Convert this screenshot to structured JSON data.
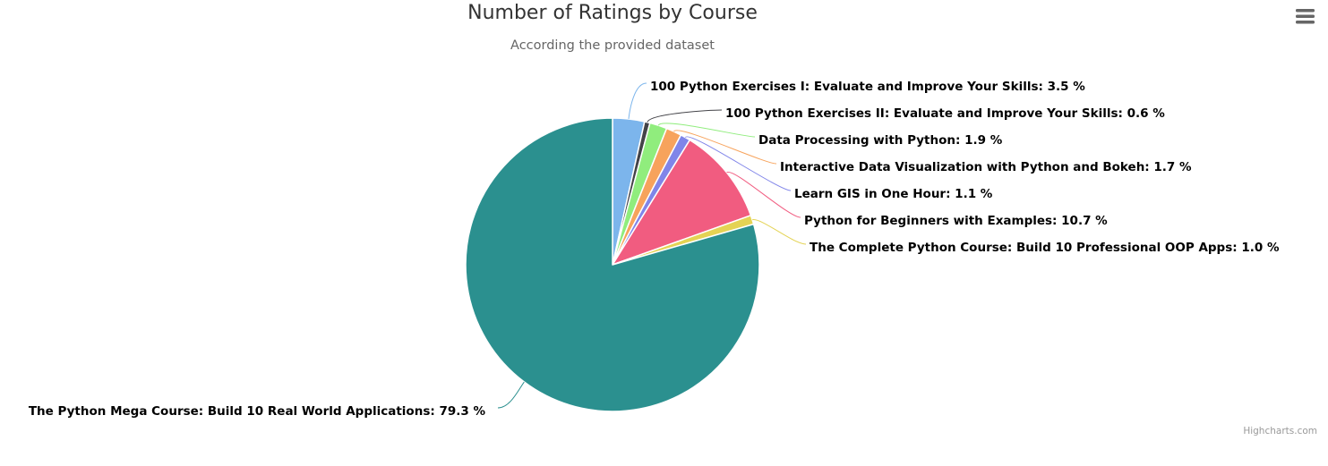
{
  "chart": {
    "menu_icon": "hamburger-menu-icon",
    "credits": "Highcharts.com"
  },
  "chart_data": {
    "type": "pie",
    "title": "Number of Ratings by Course",
    "subtitle": "According the provided dataset",
    "value_suffix": " %",
    "slices": [
      {
        "name": "100 Python Exercises I: Evaluate and Improve Your Skills",
        "value": 3.5,
        "color": "#7cb5ec"
      },
      {
        "name": "100 Python Exercises II: Evaluate and Improve Your Skills",
        "value": 0.6,
        "color": "#434348"
      },
      {
        "name": "Data Processing with Python",
        "value": 1.9,
        "color": "#90ed7d"
      },
      {
        "name": "Interactive Data Visualization with Python and Bokeh",
        "value": 1.7,
        "color": "#f7a35c"
      },
      {
        "name": "Learn GIS in One Hour",
        "value": 1.1,
        "color": "#8085e9"
      },
      {
        "name": "Python for Beginners with Examples",
        "value": 10.7,
        "color": "#f15c80"
      },
      {
        "name": "The Complete Python Course: Build 10 Professional OOP Apps",
        "value": 1.0,
        "color": "#e4d354"
      },
      {
        "name": "The Python Mega Course: Build 10 Real World Applications",
        "value": 79.3,
        "color": "#2b908f"
      }
    ]
  }
}
